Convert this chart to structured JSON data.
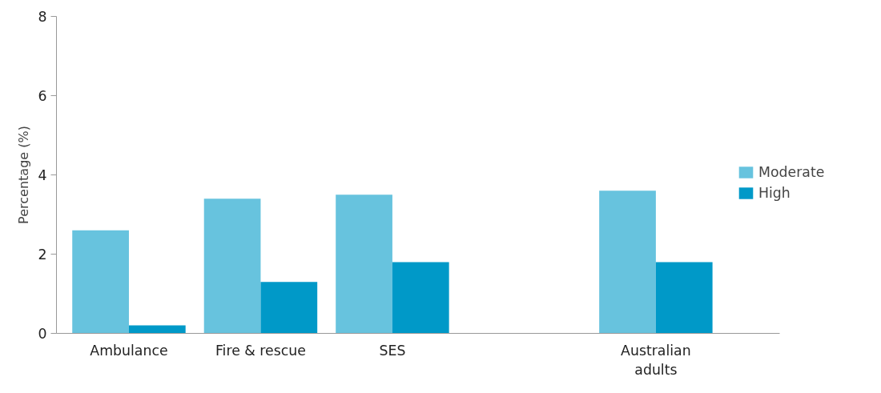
{
  "chart_data": {
    "type": "bar",
    "ylabel": "Percentage (%)",
    "categories": [
      "Ambulance",
      "Fire & rescue",
      "SES",
      null,
      "Australian adults"
    ],
    "series": [
      {
        "name": "Moderate",
        "color": "#67c3de",
        "values": [
          2.6,
          3.4,
          3.5,
          null,
          3.6
        ]
      },
      {
        "name": "High",
        "color": "#0099c8",
        "values": [
          0.2,
          1.3,
          1.8,
          null,
          1.8
        ]
      }
    ],
    "ylim": [
      0,
      8
    ],
    "yticks": [
      0,
      2,
      4,
      6,
      8
    ],
    "grid": false,
    "legend": "right"
  }
}
